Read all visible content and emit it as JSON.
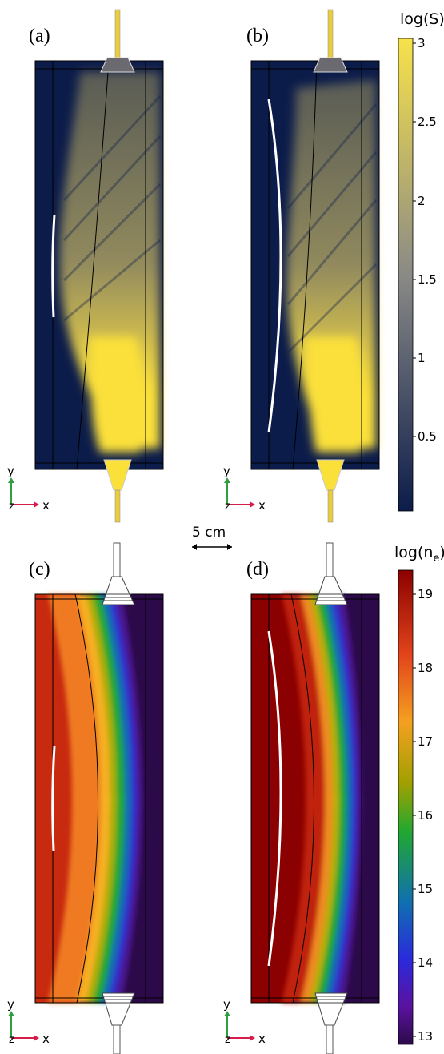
{
  "panels": [
    {
      "id": "a",
      "label": "(a)"
    },
    {
      "id": "b",
      "label": "(b)"
    },
    {
      "id": "c",
      "label": "(c)"
    },
    {
      "id": "d",
      "label": "(d)"
    }
  ],
  "colorbar_S": {
    "title": "log(S)",
    "ticks": [
      "3",
      "2.5",
      "2",
      "1.5",
      "1",
      "0.5"
    ],
    "range": [
      0,
      3
    ],
    "colors": [
      "#0c1c4a",
      "#8a8a86",
      "#f7e24a"
    ]
  },
  "colorbar_ne": {
    "title_prefix": "log(n",
    "title_sub": "e",
    "title_suffix": ")",
    "ticks": [
      "19",
      "18",
      "17",
      "16",
      "15",
      "14",
      "13"
    ],
    "range": [
      13,
      19
    ],
    "colors": [
      "#8b0000",
      "#e3451c",
      "#f4a020",
      "#a0a000",
      "#22a830",
      "#1070b0",
      "#2a2adc",
      "#5b12a0",
      "#2c0a4a"
    ]
  },
  "scale_bar": {
    "label": "5 cm"
  },
  "axes": {
    "x": "x",
    "y": "y",
    "z": "z"
  }
}
